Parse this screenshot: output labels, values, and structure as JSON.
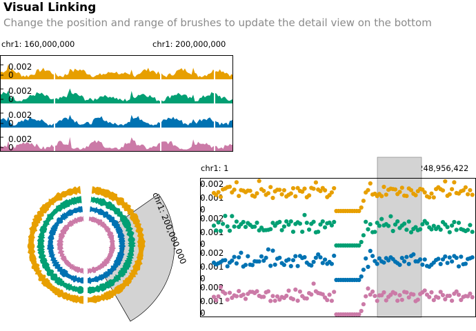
{
  "header": {
    "title": "Visual Linking",
    "subtitle": "Change the position and range of brushes to update the detail view on the bottom"
  },
  "colors": {
    "series": [
      "#E79F00",
      "#029F73",
      "#0072B2",
      "#CB7AA7"
    ],
    "brush": "#d3d3d3",
    "axis": "#000000"
  },
  "top_view": {
    "left_label": "chr1: 160,000,000",
    "right_label": "chr1: 200,000,000",
    "tick_top": "0.002",
    "tick_bottom": "0"
  },
  "circular_view": {
    "brush_label": "chr1: 200,000,000"
  },
  "bottom_view": {
    "left_label": "chr1: 1",
    "right_label": "chr1: 248,956,422",
    "ticks": [
      "0.002",
      "0.001",
      "0"
    ]
  },
  "chart_data": {
    "type": "area",
    "series_count": 4,
    "ylim": [
      0,
      0.002
    ]
  }
}
